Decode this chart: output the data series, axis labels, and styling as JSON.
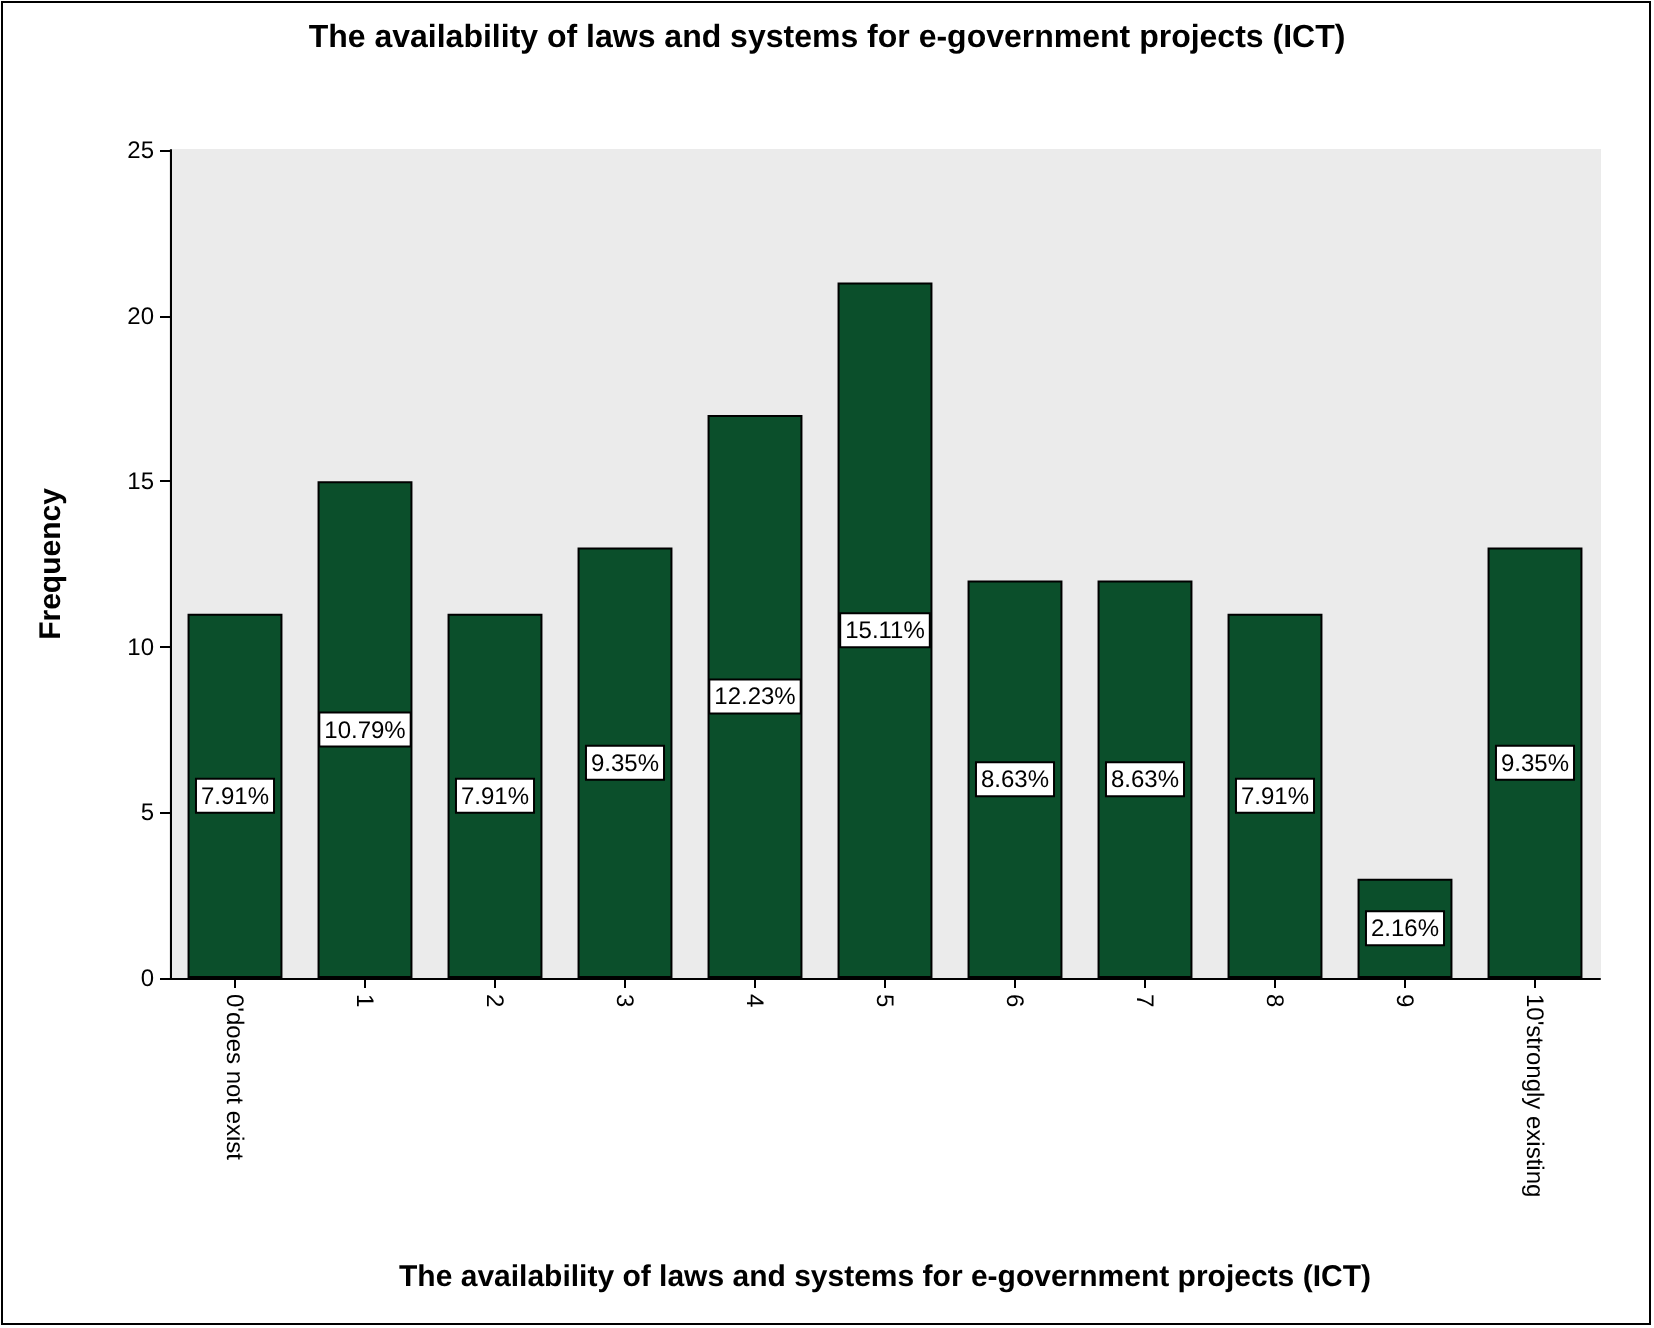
{
  "chart_data": {
    "type": "bar",
    "title": "The availability of laws and systems for e-government projects (ICT)",
    "xlabel": "The availability of laws and systems for e-government projects (ICT)",
    "ylabel": "Frequency",
    "categories": [
      "0'does not exist",
      "1",
      "2",
      "3",
      "4",
      "5",
      "6",
      "7",
      "8",
      "9",
      "10'strongly existing"
    ],
    "values": [
      11,
      15,
      11,
      13,
      17,
      21,
      12,
      12,
      11,
      3,
      13
    ],
    "annotations": [
      "7.91%",
      "10.79%",
      "7.91%",
      "9.35%",
      "12.23%",
      "15.11%",
      "8.63%",
      "8.63%",
      "7.91%",
      "2.16%",
      "9.35%"
    ],
    "color": "#0b4f2b",
    "ylim": [
      0,
      25
    ],
    "yticks": [
      0,
      5,
      10,
      15,
      20,
      25
    ],
    "grid": false
  }
}
